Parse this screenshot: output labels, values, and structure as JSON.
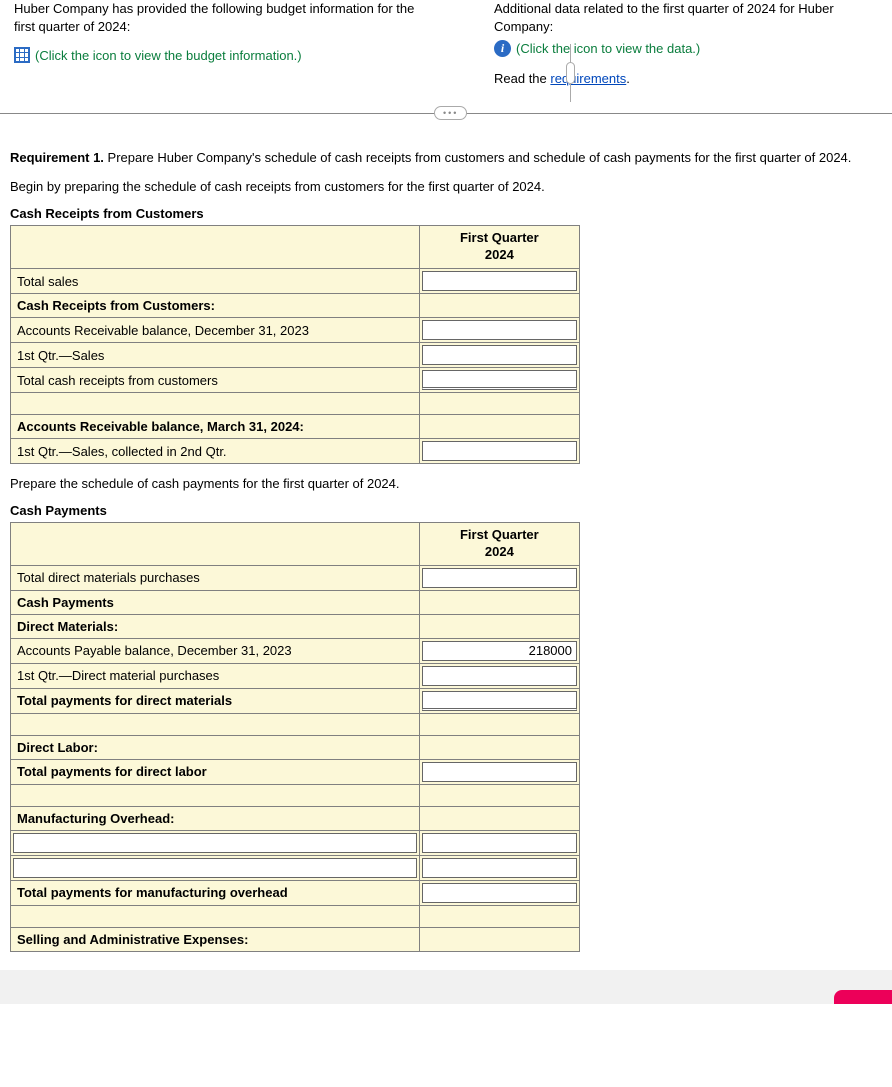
{
  "header": {
    "left_text": "Huber Company has provided the following budget information for the first quarter of 2024:",
    "left_link": "(Click the icon to view the budget information.)",
    "right_text": "Additional data related to the first quarter of 2024 for Huber Company:",
    "right_link": "(Click the icon to view the data.)",
    "read_prefix": "Read the ",
    "read_link": "requirements"
  },
  "requirement": {
    "label": "Requirement 1.",
    "text": " Prepare Huber Company's schedule of cash receipts from customers and schedule of cash payments for the first quarter of 2024.",
    "begin": "Begin by preparing the schedule of cash receipts from customers for the first quarter of 2024."
  },
  "table1": {
    "title": "Cash Receipts from Customers",
    "header_l1": "First Quarter",
    "header_l2": "2024",
    "rows": {
      "r0": "Total sales",
      "r1": "Cash Receipts from Customers:",
      "r2": "Accounts Receivable balance, December 31, 2023",
      "r3": "1st Qtr.—Sales",
      "r4": "Total cash receipts from customers",
      "r5": "Accounts Receivable balance, March 31, 2024:",
      "r6": "1st Qtr.—Sales, collected in 2nd Qtr."
    },
    "values": {
      "v0": "",
      "v2": "",
      "v3": "",
      "v4": "",
      "v6": ""
    }
  },
  "mid_text": "Prepare the schedule of cash payments for the first quarter of 2024.",
  "table2": {
    "title": "Cash Payments",
    "header_l1": "First Quarter",
    "header_l2": "2024",
    "rows": {
      "r0": "Total direct materials purchases",
      "r1": "Cash Payments",
      "r2": "Direct Materials:",
      "r3": "Accounts Payable balance, December 31, 2023",
      "r4": "1st Qtr.—Direct material purchases",
      "r5": "Total payments for direct materials",
      "r7": "Direct Labor:",
      "r8": "Total payments for direct labor",
      "r10": "Manufacturing Overhead:",
      "r13": "Total payments for manufacturing overhead",
      "r15": "Selling and Administrative Expenses:"
    },
    "values": {
      "v0": "",
      "v3": "218000",
      "v4": "",
      "v5": "",
      "v8": "",
      "t11": "",
      "v11": "",
      "t12": "",
      "v12": "",
      "v13": ""
    }
  },
  "colors": {
    "cell_bg": "#fcf8d8",
    "link_green": "#0a7d3d",
    "link_blue": "#0047bb",
    "icon_blue": "#2b6bc4"
  }
}
